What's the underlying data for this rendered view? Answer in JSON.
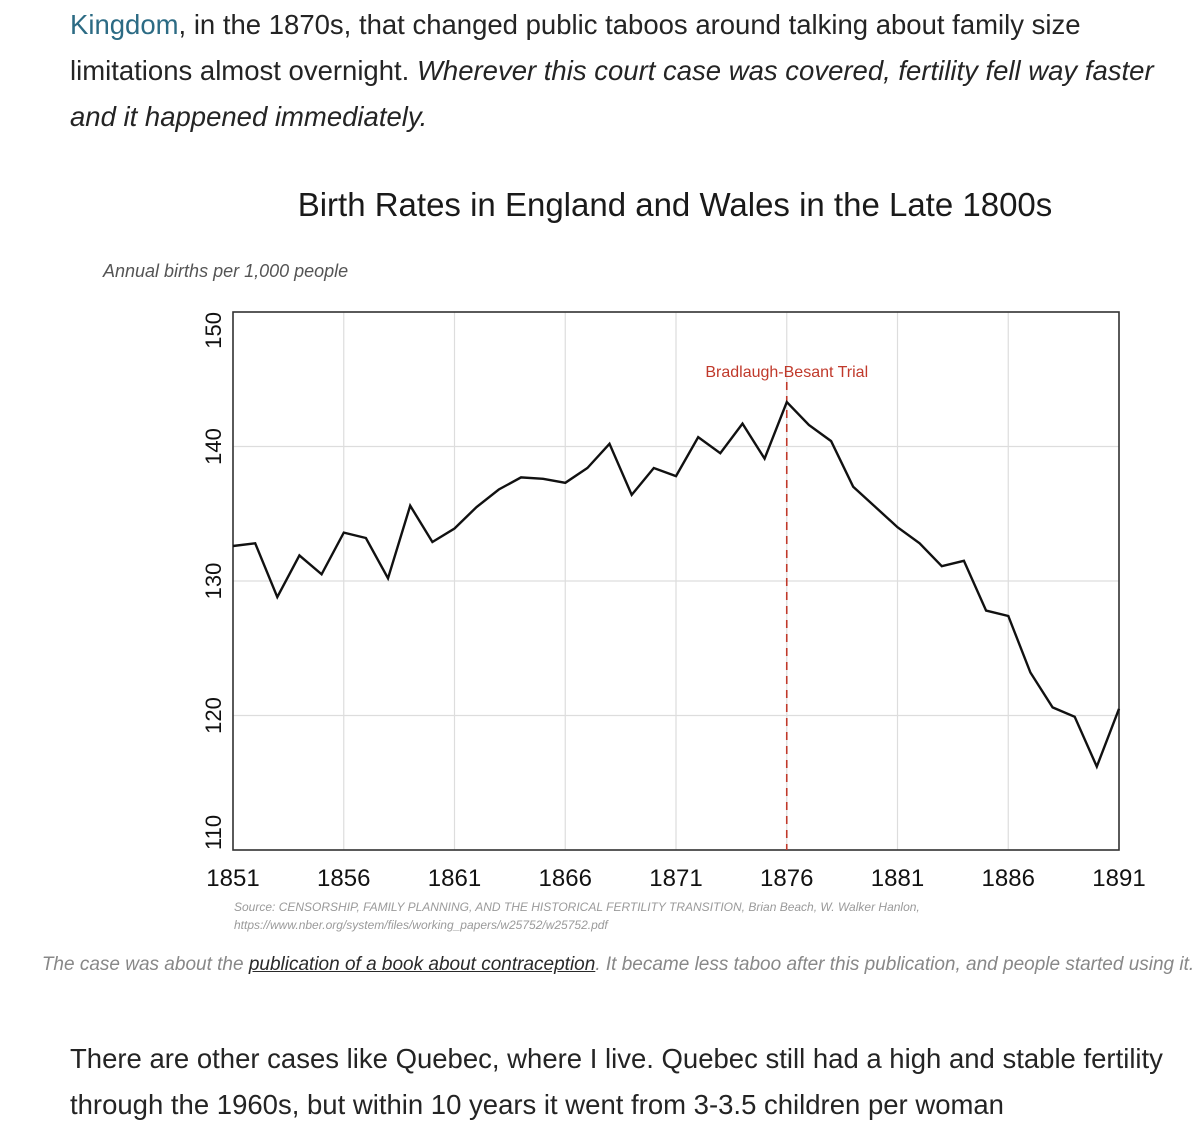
{
  "top_paragraph": {
    "link_text": "Kingdom",
    "text_after_link": ", in the 1870s, that changed public taboos around talking about family size limitations almost overnight. ",
    "italic_text": "Wherever this court case was covered, fertility fell way faster and it happened immediately."
  },
  "chart_data": {
    "type": "line",
    "title": "Birth Rates in England and Wales in the Late 1800s",
    "ylabel": "Annual births per 1,000 people",
    "xlabel": "",
    "xlim": [
      1851,
      1891
    ],
    "ylim": [
      110,
      150
    ],
    "x_ticks": [
      "1851",
      "1856",
      "1861",
      "1866",
      "1871",
      "1876",
      "1881",
      "1886",
      "1891"
    ],
    "y_ticks": [
      "110",
      "120",
      "130",
      "140",
      "150"
    ],
    "grid": true,
    "series": [
      {
        "color": "#000000",
        "x": [
          1851,
          1852,
          1853,
          1854,
          1855,
          1856,
          1857,
          1858,
          1859,
          1860,
          1861,
          1862,
          1863,
          1864,
          1865,
          1866,
          1867,
          1868,
          1869,
          1870,
          1871,
          1872,
          1873,
          1874,
          1875,
          1876,
          1877,
          1878,
          1879,
          1880,
          1881,
          1882,
          1883,
          1884,
          1885,
          1886,
          1887,
          1888,
          1889,
          1890,
          1891
        ],
        "values": [
          132.6,
          132.8,
          128.8,
          131.9,
          130.5,
          133.6,
          133.2,
          130.2,
          135.6,
          132.9,
          133.9,
          135.5,
          136.8,
          137.7,
          137.6,
          137.3,
          138.4,
          140.2,
          136.4,
          138.4,
          137.8,
          140.7,
          139.5,
          141.7,
          139.1,
          143.3,
          141.6,
          140.4,
          137.0,
          135.5,
          134.0,
          132.8,
          131.1,
          131.5,
          127.8,
          127.4,
          123.2,
          120.6,
          119.9,
          116.2,
          120.5
        ]
      }
    ],
    "annotations": [
      {
        "x": 1876,
        "label": "Bradlaugh-Besant Trial",
        "color": "#c0392b",
        "style": "dashed"
      }
    ]
  },
  "source": {
    "line1": "Source: CENSORSHIP, FAMILY PLANNING, AND THE HISTORICAL FERTILITY TRANSITION, Brian Beach, W. Walker Hanlon,",
    "line2": "https://www.nber.org/system/files/working_papers/w25752/w25752.pdf"
  },
  "caption": {
    "before": "The case was about the ",
    "link": "publication of a book about contraception",
    "after": ". It became less taboo after this publication, and people started using it."
  },
  "bottom_paragraph": "There are other cases like Quebec, where I live. Quebec still had a high and stable fertility through the 1960s, but within 10 years it went from 3-3.5 children per woman"
}
